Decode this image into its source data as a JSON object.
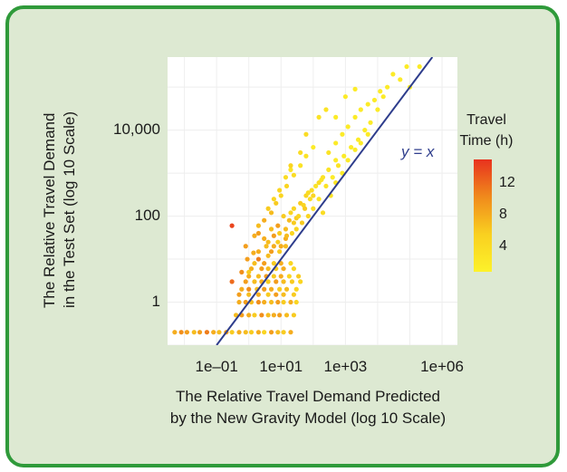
{
  "chart_data": {
    "type": "scatter",
    "title": "",
    "xlabel": [
      "The Relative Travel Demand Predicted",
      "by the New Gravity Model (log 10 Scale)"
    ],
    "ylabel": [
      "The Relative Travel Demand",
      "in the Test Set (log 10 Scale)"
    ],
    "x_scale": "log10",
    "y_scale": "log10",
    "xlim": [
      0.003,
      3000000
    ],
    "ylim": [
      0.1,
      500000
    ],
    "x_ticks": [
      {
        "value": 0.1,
        "label": "1e–01"
      },
      {
        "value": 10,
        "label": "1e+01"
      },
      {
        "value": 1000,
        "label": "1e+03"
      },
      {
        "value": 1000000,
        "label": "1e+06"
      }
    ],
    "y_ticks": [
      {
        "value": 1,
        "label": "1"
      },
      {
        "value": 100,
        "label": "100"
      },
      {
        "value": 10000,
        "label": "10,000"
      }
    ],
    "reference_line": {
      "label": "y = x",
      "color": "#2e3d8c"
    },
    "colorbar": {
      "title": [
        "Travel",
        "Time (h)"
      ],
      "ticks": [
        4,
        8,
        12
      ],
      "range": [
        1,
        15
      ],
      "colors": [
        "#fdf22a",
        "#f9d020",
        "#f08a1c",
        "#e8321e"
      ]
    },
    "series": [
      {
        "points": [
          [
            0.005,
            0.2,
            8
          ],
          [
            0.008,
            0.2,
            10
          ],
          [
            0.012,
            0.2,
            9
          ],
          [
            0.02,
            0.2,
            7
          ],
          [
            0.03,
            0.2,
            9
          ],
          [
            0.05,
            0.2,
            11
          ],
          [
            0.08,
            0.2,
            8
          ],
          [
            0.12,
            0.2,
            7
          ],
          [
            0.2,
            0.2,
            9
          ],
          [
            0.3,
            0.2,
            6
          ],
          [
            0.5,
            0.2,
            8
          ],
          [
            0.8,
            0.2,
            7
          ],
          [
            1.2,
            0.2,
            6
          ],
          [
            2,
            0.2,
            8
          ],
          [
            3,
            0.2,
            5
          ],
          [
            5,
            0.2,
            9
          ],
          [
            8,
            0.2,
            7
          ],
          [
            12,
            0.2,
            6
          ],
          [
            20,
            0.2,
            8
          ],
          [
            0.4,
            0.5,
            7
          ],
          [
            0.6,
            0.5,
            9
          ],
          [
            1,
            0.5,
            8
          ],
          [
            1.5,
            0.5,
            6
          ],
          [
            2.5,
            0.5,
            10
          ],
          [
            4,
            0.5,
            7
          ],
          [
            6,
            0.5,
            8
          ],
          [
            9,
            0.5,
            9
          ],
          [
            15,
            0.5,
            7
          ],
          [
            25,
            0.5,
            6
          ],
          [
            0.5,
            1,
            8
          ],
          [
            0.8,
            1,
            9
          ],
          [
            1.2,
            1,
            7
          ],
          [
            2,
            1,
            10
          ],
          [
            3,
            1,
            8
          ],
          [
            5,
            1,
            7
          ],
          [
            8,
            1,
            9
          ],
          [
            12,
            1,
            6
          ],
          [
            20,
            1,
            8
          ],
          [
            30,
            1,
            5
          ],
          [
            0.5,
            1.5,
            9
          ],
          [
            1,
            1.5,
            7
          ],
          [
            2,
            1.5,
            8
          ],
          [
            4,
            1.5,
            6
          ],
          [
            7,
            1.5,
            9
          ],
          [
            12,
            1.5,
            7
          ],
          [
            25,
            1.5,
            6
          ],
          [
            0.6,
            2,
            8
          ],
          [
            1,
            2,
            10
          ],
          [
            1.8,
            2,
            7
          ],
          [
            3,
            2,
            9
          ],
          [
            5,
            2,
            8
          ],
          [
            9,
            2,
            6
          ],
          [
            15,
            2,
            7
          ],
          [
            30,
            2,
            5
          ],
          [
            0.8,
            3,
            9
          ],
          [
            1.5,
            3,
            7
          ],
          [
            2.5,
            3,
            8
          ],
          [
            4,
            3,
            6
          ],
          [
            7,
            3,
            9
          ],
          [
            12,
            3,
            7
          ],
          [
            22,
            3,
            6
          ],
          [
            40,
            3,
            5
          ],
          [
            1,
            4,
            8
          ],
          [
            2,
            4,
            7
          ],
          [
            3.5,
            4,
            9
          ],
          [
            6,
            4,
            6
          ],
          [
            10,
            4,
            8
          ],
          [
            18,
            4,
            5
          ],
          [
            35,
            4,
            6
          ],
          [
            1.2,
            6,
            8
          ],
          [
            2.5,
            6,
            9
          ],
          [
            4,
            6,
            7
          ],
          [
            7,
            6,
            6
          ],
          [
            12,
            6,
            8
          ],
          [
            25,
            6,
            5
          ],
          [
            1.5,
            8,
            7
          ],
          [
            3,
            8,
            9
          ],
          [
            6,
            8,
            6
          ],
          [
            10,
            8,
            8
          ],
          [
            20,
            8,
            5
          ],
          [
            0.3,
            3,
            12
          ],
          [
            0.6,
            5,
            10
          ],
          [
            0.9,
            10,
            9
          ],
          [
            1.4,
            14,
            8
          ],
          [
            2,
            10,
            11
          ],
          [
            3.5,
            20,
            7
          ],
          [
            5,
            15,
            9
          ],
          [
            8,
            25,
            6
          ],
          [
            14,
            30,
            8
          ],
          [
            22,
            40,
            5
          ],
          [
            3,
            30,
            8
          ],
          [
            5,
            50,
            7
          ],
          [
            8,
            60,
            9
          ],
          [
            12,
            100,
            6
          ],
          [
            18,
            80,
            7
          ],
          [
            25,
            150,
            5
          ],
          [
            40,
            200,
            6
          ],
          [
            60,
            300,
            5
          ],
          [
            90,
            400,
            4
          ],
          [
            150,
            600,
            4
          ],
          [
            4,
            12,
            7
          ],
          [
            6,
            20,
            8
          ],
          [
            9,
            40,
            6
          ],
          [
            14,
            50,
            7
          ],
          [
            20,
            120,
            5
          ],
          [
            30,
            90,
            6
          ],
          [
            50,
            180,
            5
          ],
          [
            80,
            250,
            4
          ],
          [
            120,
            500,
            3
          ],
          [
            200,
            800,
            3
          ],
          [
            10,
            20,
            8
          ],
          [
            15,
            35,
            7
          ],
          [
            25,
            70,
            6
          ],
          [
            35,
            100,
            5
          ],
          [
            55,
            150,
            6
          ],
          [
            70,
            350,
            4
          ],
          [
            100,
            300,
            5
          ],
          [
            180,
            700,
            3
          ],
          [
            300,
            1200,
            3
          ],
          [
            500,
            2000,
            2
          ],
          [
            2,
            40,
            9
          ],
          [
            3,
            80,
            8
          ],
          [
            5,
            120,
            7
          ],
          [
            7,
            200,
            6
          ],
          [
            10,
            300,
            5
          ],
          [
            15,
            500,
            5
          ],
          [
            25,
            900,
            4
          ],
          [
            40,
            1500,
            3
          ],
          [
            60,
            2500,
            3
          ],
          [
            100,
            4000,
            2
          ],
          [
            0.8,
            20,
            9
          ],
          [
            1.5,
            35,
            8
          ],
          [
            2,
            60,
            7
          ],
          [
            4,
            150,
            6
          ],
          [
            6,
            250,
            5
          ],
          [
            9,
            400,
            5
          ],
          [
            14,
            800,
            4
          ],
          [
            20,
            1200,
            3
          ],
          [
            100,
            150,
            4
          ],
          [
            150,
            250,
            3
          ],
          [
            250,
            500,
            3
          ],
          [
            400,
            800,
            2
          ],
          [
            600,
            1500,
            3
          ],
          [
            900,
            2500,
            2
          ],
          [
            1500,
            4000,
            2
          ],
          [
            2500,
            6000,
            2
          ],
          [
            4000,
            10000,
            2
          ],
          [
            6000,
            15000,
            2
          ],
          [
            200,
            120,
            4
          ],
          [
            350,
            300,
            3
          ],
          [
            500,
            600,
            3
          ],
          [
            800,
            1000,
            2
          ],
          [
            1200,
            2000,
            2
          ],
          [
            2000,
            3500,
            2
          ],
          [
            3000,
            5000,
            2
          ],
          [
            5000,
            8000,
            2
          ],
          [
            300,
            3000,
            3
          ],
          [
            500,
            5000,
            2
          ],
          [
            800,
            8000,
            2
          ],
          [
            1200,
            12000,
            2
          ],
          [
            2000,
            20000,
            2
          ],
          [
            3000,
            30000,
            2
          ],
          [
            5000,
            40000,
            2
          ],
          [
            8000,
            50000,
            2
          ],
          [
            12000,
            80000,
            2
          ],
          [
            20000,
            100000,
            2
          ],
          [
            1000,
            60000,
            2
          ],
          [
            2000,
            90000,
            2
          ],
          [
            30000,
            200000,
            2
          ],
          [
            50000,
            150000,
            2
          ],
          [
            80000,
            300000,
            2
          ],
          [
            150,
            20000,
            3
          ],
          [
            250,
            30000,
            3
          ],
          [
            60,
            8000,
            4
          ],
          [
            40,
            3000,
            4
          ],
          [
            20,
            1500,
            5
          ],
          [
            10000,
            30000,
            2
          ],
          [
            15000,
            60000,
            2
          ],
          [
            200000,
            300000,
            2
          ],
          [
            100000,
            100000,
            2
          ],
          [
            500,
            20000,
            2
          ],
          [
            0.3,
            60,
            14
          ],
          [
            1,
            5,
            6
          ],
          [
            2,
            15,
            8
          ],
          [
            4,
            25,
            7
          ],
          [
            6,
            35,
            9
          ],
          [
            9,
            15,
            6
          ],
          [
            14,
            20,
            7
          ],
          [
            30,
            50,
            5
          ],
          [
            45,
            70,
            6
          ],
          [
            70,
            100,
            5
          ]
        ]
      }
    ]
  }
}
